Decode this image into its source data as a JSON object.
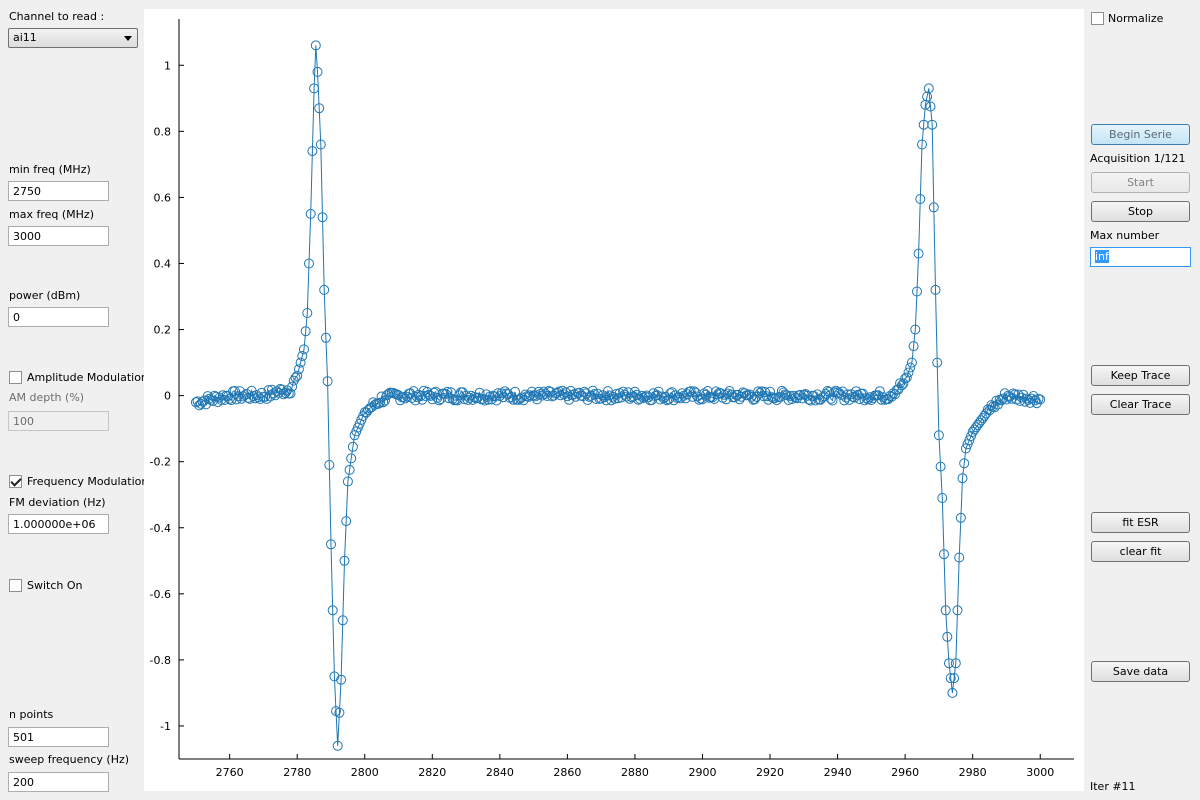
{
  "left_panel": {
    "channel_label": "Channel to read :",
    "channel_value": "ai11",
    "min_freq_label": "min freq (MHz)",
    "min_freq_value": "2750",
    "max_freq_label": "max freq (MHz)",
    "max_freq_value": "3000",
    "power_label": "power (dBm)",
    "power_value": "0",
    "am_label": "Amplitude Modulation",
    "am_checked": false,
    "am_depth_label": "AM depth (%)",
    "am_depth_value": "100",
    "fm_label": "Frequency Modulation",
    "fm_checked": true,
    "fm_dev_label": "FM deviation (Hz)",
    "fm_dev_value": "1.000000e+06",
    "switch_label": "Switch On",
    "switch_checked": false,
    "npoints_label": "n points",
    "npoints_value": "501",
    "sweep_label": "sweep frequency (Hz)",
    "sweep_value": "200"
  },
  "right_panel": {
    "normalize_label": "Normalize",
    "normalize_checked": false,
    "begin_serie": "Begin Serie",
    "acquisition": "Acquisition 1/121",
    "start": "Start",
    "stop": "Stop",
    "max_number_label": "Max number",
    "max_number_value": "inf",
    "keep_trace": "Keep Trace",
    "clear_trace": "Clear Trace",
    "fit_esr": "fit ESR",
    "clear_fit": "clear fit",
    "save_data": "Save data",
    "iter": "Iter #11"
  },
  "chart_data": {
    "type": "line",
    "title": "",
    "xlabel": "",
    "ylabel": "",
    "xlim": [
      2745,
      3010
    ],
    "ylim": [
      -1.1,
      1.14
    ],
    "xticks": [
      2760,
      2780,
      2800,
      2820,
      2840,
      2860,
      2880,
      2900,
      2920,
      2940,
      2960,
      2980,
      3000
    ],
    "yticks": [
      -1,
      -0.8,
      -0.6,
      -0.4,
      -0.2,
      0,
      0.2,
      0.4,
      0.6,
      0.8,
      1
    ],
    "ytick_labels": [
      "-1",
      "-0.8",
      "-0.6",
      "-0.4",
      "-0.2",
      "0",
      "0.2",
      "0.4",
      "0.6",
      "0.8",
      "1"
    ],
    "grid": false,
    "marker": "circle",
    "color": "#1f77b4",
    "n_points": 501,
    "x_start": 2750,
    "x_end": 3000,
    "points": [
      [
        2750,
        -0.02
      ],
      [
        2760,
        0.0
      ],
      [
        2770,
        0.0
      ],
      [
        2778,
        0.02
      ],
      [
        2780,
        0.06
      ],
      [
        2782,
        0.14
      ],
      [
        2783,
        0.25
      ],
      [
        2784,
        0.55
      ],
      [
        2785,
        0.93
      ],
      [
        2785.5,
        1.06
      ],
      [
        2786,
        0.98
      ],
      [
        2787,
        0.76
      ],
      [
        2788,
        0.32
      ],
      [
        2789,
        0.03
      ],
      [
        2790,
        -0.45
      ],
      [
        2791,
        -0.85
      ],
      [
        2792,
        -1.06
      ],
      [
        2793,
        -0.86
      ],
      [
        2794,
        -0.5
      ],
      [
        2795,
        -0.26
      ],
      [
        2797,
        -0.12
      ],
      [
        2800,
        -0.05
      ],
      [
        2805,
        -0.01
      ],
      [
        2810,
        0.0
      ],
      [
        2900,
        0.0
      ],
      [
        2950,
        0.0
      ],
      [
        2955,
        0.0
      ],
      [
        2960,
        0.04
      ],
      [
        2962,
        0.1
      ],
      [
        2963,
        0.2
      ],
      [
        2964,
        0.43
      ],
      [
        2965,
        0.76
      ],
      [
        2966,
        0.88
      ],
      [
        2967,
        0.93
      ],
      [
        2968,
        0.82
      ],
      [
        2969,
        0.32
      ],
      [
        2970,
        -0.12
      ],
      [
        2971,
        -0.31
      ],
      [
        2972,
        -0.65
      ],
      [
        2973,
        -0.81
      ],
      [
        2974,
        -0.9
      ],
      [
        2975,
        -0.81
      ],
      [
        2976,
        -0.49
      ],
      [
        2977,
        -0.25
      ],
      [
        2978,
        -0.16
      ],
      [
        2980,
        -0.11
      ],
      [
        2985,
        -0.04
      ],
      [
        2990,
        0.0
      ],
      [
        3000,
        -0.01
      ]
    ]
  }
}
